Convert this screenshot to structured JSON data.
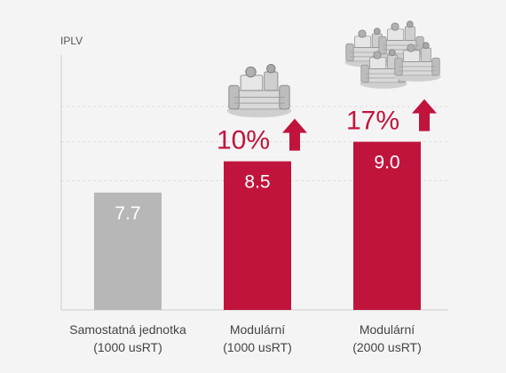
{
  "chart_data": {
    "type": "bar",
    "ylabel": "IPLV",
    "ylim": [
      4.7,
      9.9
    ],
    "gridlines": [
      8.0,
      9.0,
      9.9
    ],
    "grid": true,
    "categories": [
      [
        "Samostatná jednotka",
        "(1000 usRT)"
      ],
      [
        "Modulární",
        "(1000 usRT)"
      ],
      [
        "Modulární",
        "(2000 usRT)"
      ]
    ],
    "values": [
      7.7,
      8.5,
      9.0
    ],
    "value_labels": [
      "7.7",
      "8.5",
      "9.0"
    ],
    "increase_labels": [
      "",
      "10%",
      "17%"
    ],
    "increase_icon": "arrow-up-icon",
    "product_icons": [
      "",
      "chiller-unit-icon",
      "modular-chiller-bank-icon"
    ]
  },
  "colors": {
    "baseline_bar": "#b8b7b8",
    "highlight_bar": "#c0143c",
    "axis": "#cccccc",
    "grid": "#dddddd",
    "text": "#444444",
    "background": "#f4f4f4"
  }
}
